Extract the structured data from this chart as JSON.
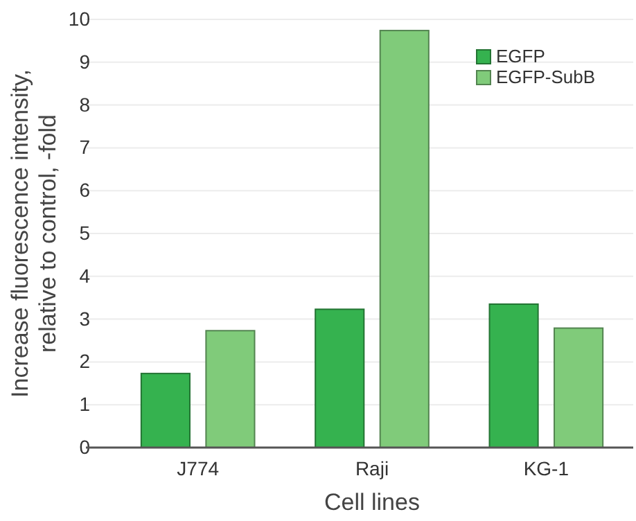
{
  "chart_data": {
    "type": "bar",
    "xlabel": "Cell lines",
    "ylabel": "Increase fluorescence intensity,\nrelative to control, -fold",
    "categories": [
      "J774",
      "Raji",
      "KG-1"
    ],
    "series": [
      {
        "name": "EGFP",
        "color": "#35b24f",
        "values": [
          1.73,
          3.23,
          3.35
        ]
      },
      {
        "name": "EGFP-SubB",
        "color": "#80cb7a",
        "values": [
          2.73,
          9.74,
          2.79
        ]
      }
    ],
    "ylim": [
      0,
      10
    ],
    "yticks": [
      0,
      1,
      2,
      3,
      4,
      5,
      6,
      7,
      8,
      9,
      10
    ],
    "grid": "y",
    "legend": "top right"
  }
}
